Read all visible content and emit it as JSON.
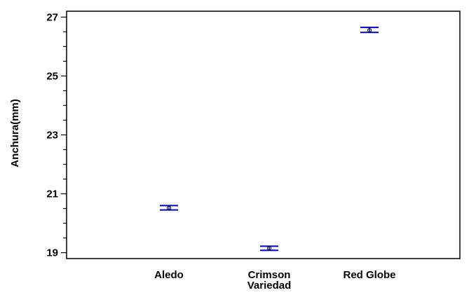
{
  "chart_data": {
    "type": "scatter",
    "subtype": "means-with-interval-bars",
    "title": "",
    "xlabel": "Variedad",
    "ylabel": "Anchura(mm)",
    "categories": [
      "Aledo",
      "Crimson",
      "Red Globe"
    ],
    "series": [
      {
        "means": [
          20.52,
          19.15,
          26.55
        ],
        "lower": [
          20.45,
          19.08,
          26.48
        ],
        "upper": [
          20.6,
          19.22,
          26.65
        ]
      }
    ],
    "ylim": [
      18.8,
      27.2
    ],
    "yticks": [
      19,
      21,
      23,
      25,
      27
    ],
    "grid": false,
    "legend": "none",
    "colors": {
      "interval": "#0000cc",
      "point": "#000000",
      "axis": "#000000"
    }
  }
}
